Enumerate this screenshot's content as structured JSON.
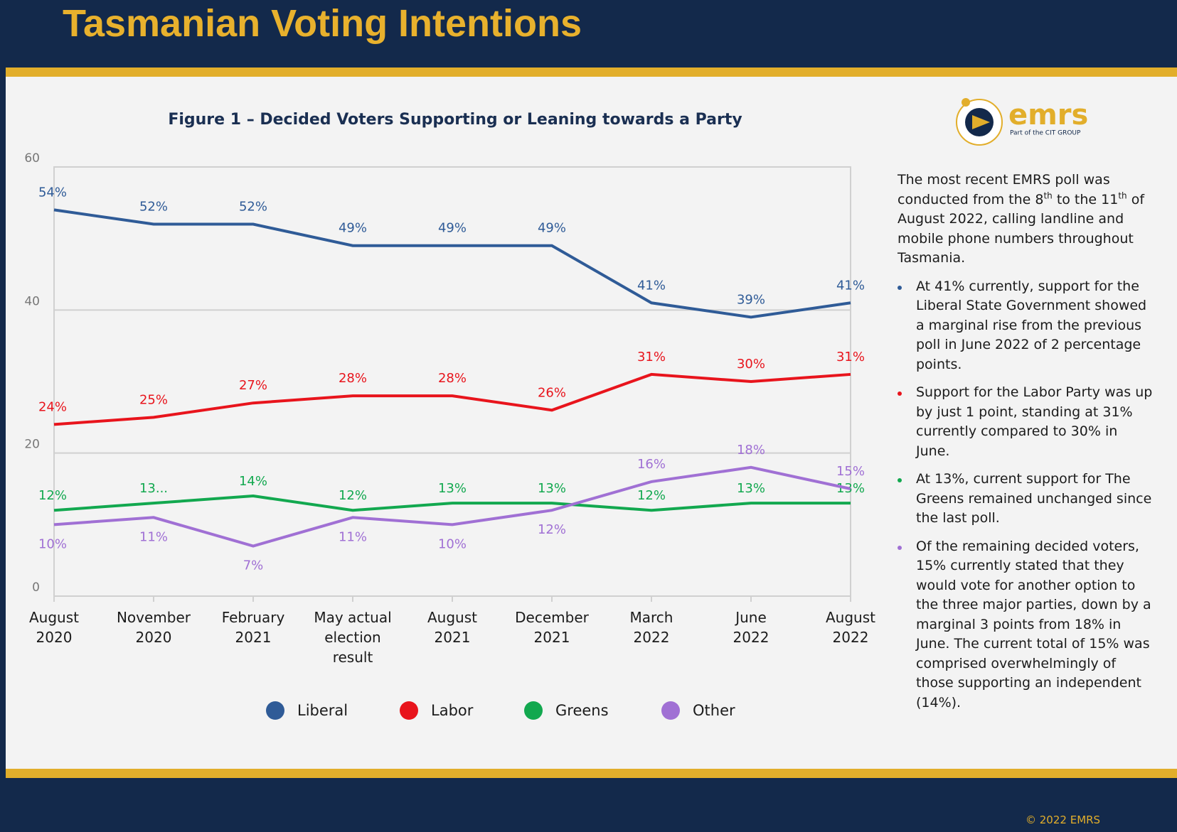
{
  "header": {
    "title": "Tasmanian Voting Intentions"
  },
  "chart_data": {
    "type": "line",
    "title": "Figure 1 – Decided Voters Supporting or Leaning towards a Party",
    "categories": [
      "August\n2020",
      "November\n2020",
      "February\n2021",
      "May actual\nelection\nresult",
      "August\n2021",
      "December\n2021",
      "March\n2022",
      "June\n2022",
      "August\n2022"
    ],
    "series": [
      {
        "name": "Liberal",
        "color": "#2f5b97",
        "values": [
          54,
          52,
          52,
          49,
          49,
          49,
          41,
          39,
          41
        ],
        "value_labels": [
          "54%",
          "52%",
          "52%",
          "49%",
          "49%",
          "49%",
          "41%",
          "39%",
          "41%"
        ]
      },
      {
        "name": "Labor",
        "color": "#e8141c",
        "values": [
          24,
          25,
          27,
          28,
          28,
          26,
          31,
          30,
          31
        ],
        "value_labels": [
          "24%",
          "25%",
          "27%",
          "28%",
          "28%",
          "26%",
          "31%",
          "30%",
          "31%"
        ]
      },
      {
        "name": "Greens",
        "color": "#12a84f",
        "values": [
          12,
          13,
          14,
          12,
          13,
          13,
          12,
          13,
          13
        ],
        "value_labels": [
          "12%",
          "13...",
          "14%",
          "12%",
          "13%",
          "13%",
          "12%",
          "13%",
          "13%"
        ]
      },
      {
        "name": "Other",
        "color": "#a070d4",
        "values": [
          10,
          11,
          7,
          11,
          10,
          12,
          16,
          18,
          15
        ],
        "value_labels": [
          "10%",
          "11%",
          "7%",
          "11%",
          "10%",
          "12%",
          "16%",
          "18%",
          "15%"
        ]
      }
    ],
    "ylim": [
      0,
      60
    ],
    "yticks": [
      0,
      20,
      40,
      60
    ],
    "grid": true
  },
  "logo": {
    "name": "emrs",
    "tagline": "Part of the CIT GROUP"
  },
  "panel": {
    "intro": [
      "The most recent EMRS poll was conducted from the 8",
      "th",
      " to the 11",
      "th",
      " of August 2022, calling landline and mobile phone numbers throughout Tasmania."
    ],
    "bullets": [
      "At 41% currently, support for the Liberal State Government showed a marginal rise from the previous poll in June 2022 of 2 percentage points.",
      "Support for the Labor Party was up by just 1 point, standing at 31% currently compared to 30% in June.",
      "At 13%, current support for The Greens remained unchanged since the last poll.",
      "Of the remaining decided voters, 15% currently stated that they would vote for another option to the three major parties, down by a marginal 3 points from 18% in June. The current total of 15% was comprised overwhelmingly  of those supporting an independent (14%)."
    ]
  },
  "footer": {
    "copyright": "© 2022 EMRS"
  }
}
